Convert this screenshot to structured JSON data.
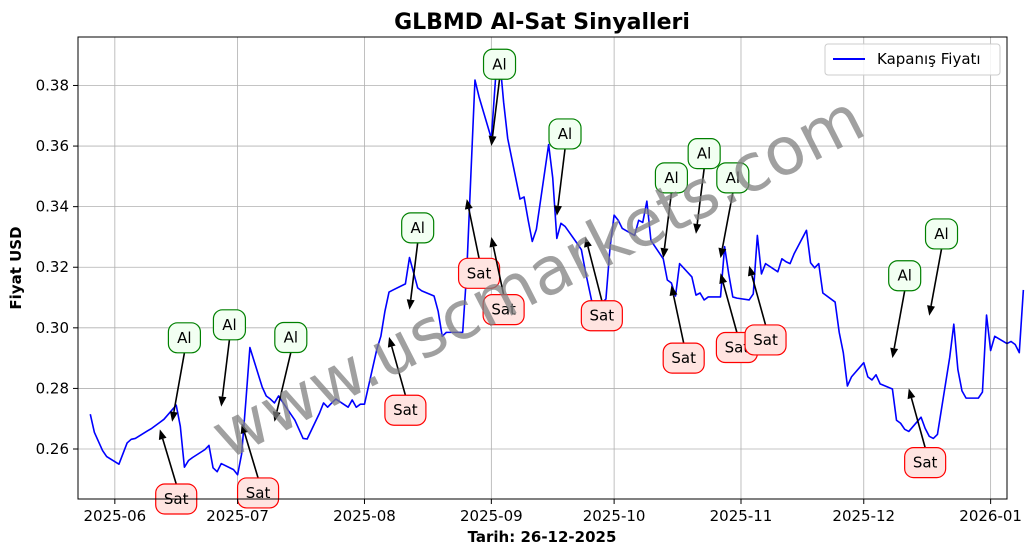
{
  "watermark": "www.uscmarkets.com",
  "chart_data": {
    "type": "line",
    "title": "GLBMD Al-Sat Sinyalleri",
    "xlabel": "Tarih: 26-12-2025",
    "ylabel": "Fiyat USD",
    "ylim": [
      0.2435,
      0.396
    ],
    "xlim": [
      "2025-05-23",
      "2026-01-05"
    ],
    "grid": true,
    "legend_position": "top-right",
    "x_ticks": [
      "2025-06-01",
      "2025-07-01",
      "2025-08-01",
      "2025-09-01",
      "2025-10-01",
      "2025-11-01",
      "2025-12-01",
      "2026-01-01"
    ],
    "x_tick_labels": [
      "2025-06",
      "2025-07",
      "2025-08",
      "2025-09",
      "2025-10",
      "2025-11",
      "2025-12",
      "2026-01"
    ],
    "y_ticks": [
      0.26,
      0.28,
      0.3,
      0.32,
      0.34,
      0.36,
      0.38
    ],
    "y_tick_labels": [
      "0.26",
      "0.28",
      "0.30",
      "0.32",
      "0.34",
      "0.36",
      "0.38"
    ],
    "series": [
      {
        "name": "Kapanış Fiyatı",
        "color": "#0000ff",
        "points": [
          [
            "2025-05-26",
            0.2715
          ],
          [
            "2025-05-27",
            0.2655
          ],
          [
            "2025-05-28",
            0.2625
          ],
          [
            "2025-05-29",
            0.2595
          ],
          [
            "2025-05-30",
            0.2575
          ],
          [
            "2025-06-02",
            0.255
          ],
          [
            "2025-06-03",
            0.2585
          ],
          [
            "2025-06-04",
            0.262
          ],
          [
            "2025-06-05",
            0.2632
          ],
          [
            "2025-06-06",
            0.2635
          ],
          [
            "2025-06-09",
            0.266
          ],
          [
            "2025-06-10",
            0.2668
          ],
          [
            "2025-06-11",
            0.2678
          ],
          [
            "2025-06-12",
            0.2688
          ],
          [
            "2025-06-13",
            0.2698
          ],
          [
            "2025-06-16",
            0.2745
          ],
          [
            "2025-06-17",
            0.2675
          ],
          [
            "2025-06-18",
            0.254
          ],
          [
            "2025-06-19",
            0.2562
          ],
          [
            "2025-06-20",
            0.2572
          ],
          [
            "2025-06-23",
            0.2598
          ],
          [
            "2025-06-24",
            0.2612
          ],
          [
            "2025-06-25",
            0.2538
          ],
          [
            "2025-06-26",
            0.2525
          ],
          [
            "2025-06-27",
            0.2552
          ],
          [
            "2025-06-30",
            0.2532
          ],
          [
            "2025-07-01",
            0.2515
          ],
          [
            "2025-07-02",
            0.2585
          ],
          [
            "2025-07-03",
            0.2755
          ],
          [
            "2025-07-04",
            0.2935
          ],
          [
            "2025-07-07",
            0.2805
          ],
          [
            "2025-07-08",
            0.2775
          ],
          [
            "2025-07-09",
            0.2765
          ],
          [
            "2025-07-10",
            0.2752
          ],
          [
            "2025-07-11",
            0.2775
          ],
          [
            "2025-07-14",
            0.2715
          ],
          [
            "2025-07-15",
            0.2695
          ],
          [
            "2025-07-16",
            0.2665
          ],
          [
            "2025-07-17",
            0.2635
          ],
          [
            "2025-07-18",
            0.2633
          ],
          [
            "2025-07-21",
            0.2718
          ],
          [
            "2025-07-22",
            0.2752
          ],
          [
            "2025-07-23",
            0.2738
          ],
          [
            "2025-07-24",
            0.2752
          ],
          [
            "2025-07-25",
            0.2765
          ],
          [
            "2025-07-28",
            0.2738
          ],
          [
            "2025-07-29",
            0.2762
          ],
          [
            "2025-07-30",
            0.2738
          ],
          [
            "2025-07-31",
            0.2748
          ],
          [
            "2025-08-01",
            0.2748
          ],
          [
            "2025-08-04",
            0.2928
          ],
          [
            "2025-08-05",
            0.2972
          ],
          [
            "2025-08-06",
            0.3055
          ],
          [
            "2025-08-07",
            0.3118
          ],
          [
            "2025-08-08",
            0.3125
          ],
          [
            "2025-08-11",
            0.3145
          ],
          [
            "2025-08-12",
            0.3232
          ],
          [
            "2025-08-13",
            0.3182
          ],
          [
            "2025-08-14",
            0.3132
          ],
          [
            "2025-08-15",
            0.3122
          ],
          [
            "2025-08-18",
            0.3105
          ],
          [
            "2025-08-19",
            0.3055
          ],
          [
            "2025-08-20",
            0.2972
          ],
          [
            "2025-08-21",
            0.2985
          ],
          [
            "2025-08-22",
            0.2985
          ],
          [
            "2025-08-25",
            0.2985
          ],
          [
            "2025-08-26",
            0.3188
          ],
          [
            "2025-08-27",
            0.3505
          ],
          [
            "2025-08-28",
            0.3818
          ],
          [
            "2025-08-29",
            0.3762
          ],
          [
            "2025-09-01",
            0.3625
          ],
          [
            "2025-09-02",
            0.3818
          ],
          [
            "2025-09-03",
            0.3895
          ],
          [
            "2025-09-04",
            0.3745
          ],
          [
            "2025-09-05",
            0.3625
          ],
          [
            "2025-09-08",
            0.3425
          ],
          [
            "2025-09-09",
            0.3432
          ],
          [
            "2025-09-10",
            0.3355
          ],
          [
            "2025-09-11",
            0.3285
          ],
          [
            "2025-09-12",
            0.3325
          ],
          [
            "2025-09-15",
            0.3605
          ],
          [
            "2025-09-16",
            0.3495
          ],
          [
            "2025-09-17",
            0.3295
          ],
          [
            "2025-09-18",
            0.3345
          ],
          [
            "2025-09-19",
            0.3335
          ],
          [
            "2025-09-22",
            0.3278
          ],
          [
            "2025-09-23",
            0.3258
          ],
          [
            "2025-09-24",
            0.3185
          ],
          [
            "2025-09-25",
            0.3122
          ],
          [
            "2025-09-26",
            0.3058
          ],
          [
            "2025-09-29",
            0.3095
          ],
          [
            "2025-09-30",
            0.3265
          ],
          [
            "2025-10-01",
            0.3372
          ],
          [
            "2025-10-02",
            0.3355
          ],
          [
            "2025-10-03",
            0.3328
          ],
          [
            "2025-10-06",
            0.3305
          ],
          [
            "2025-10-07",
            0.3355
          ],
          [
            "2025-10-08",
            0.3348
          ],
          [
            "2025-10-09",
            0.3418
          ],
          [
            "2025-10-10",
            0.3288
          ],
          [
            "2025-10-13",
            0.3228
          ],
          [
            "2025-10-14",
            0.3158
          ],
          [
            "2025-10-15",
            0.3148
          ],
          [
            "2025-10-16",
            0.3105
          ],
          [
            "2025-10-17",
            0.3212
          ],
          [
            "2025-10-20",
            0.3168
          ],
          [
            "2025-10-21",
            0.3108
          ],
          [
            "2025-10-22",
            0.3115
          ],
          [
            "2025-10-23",
            0.3092
          ],
          [
            "2025-10-24",
            0.3102
          ],
          [
            "2025-10-27",
            0.3102
          ],
          [
            "2025-10-28",
            0.3268
          ],
          [
            "2025-10-29",
            0.3178
          ],
          [
            "2025-10-30",
            0.3102
          ],
          [
            "2025-10-31",
            0.3098
          ],
          [
            "2025-11-03",
            0.3092
          ],
          [
            "2025-11-04",
            0.3112
          ],
          [
            "2025-11-05",
            0.3305
          ],
          [
            "2025-11-06",
            0.3178
          ],
          [
            "2025-11-07",
            0.3212
          ],
          [
            "2025-11-10",
            0.3185
          ],
          [
            "2025-11-11",
            0.3228
          ],
          [
            "2025-11-12",
            0.3218
          ],
          [
            "2025-11-13",
            0.3212
          ],
          [
            "2025-11-14",
            0.3245
          ],
          [
            "2025-11-17",
            0.3322
          ],
          [
            "2025-11-18",
            0.3215
          ],
          [
            "2025-11-19",
            0.3198
          ],
          [
            "2025-11-20",
            0.3212
          ],
          [
            "2025-11-21",
            0.3115
          ],
          [
            "2025-11-24",
            0.3085
          ],
          [
            "2025-11-25",
            0.2985
          ],
          [
            "2025-11-26",
            0.2918
          ],
          [
            "2025-11-27",
            0.2808
          ],
          [
            "2025-11-28",
            0.2838
          ],
          [
            "2025-12-01",
            0.2885
          ],
          [
            "2025-12-02",
            0.2838
          ],
          [
            "2025-12-03",
            0.2828
          ],
          [
            "2025-12-04",
            0.2845
          ],
          [
            "2025-12-05",
            0.2815
          ],
          [
            "2025-12-08",
            0.2798
          ],
          [
            "2025-12-09",
            0.2695
          ],
          [
            "2025-12-10",
            0.2685
          ],
          [
            "2025-12-11",
            0.2665
          ],
          [
            "2025-12-12",
            0.2658
          ],
          [
            "2025-12-15",
            0.2705
          ],
          [
            "2025-12-16",
            0.2668
          ],
          [
            "2025-12-17",
            0.2642
          ],
          [
            "2025-12-18",
            0.2635
          ],
          [
            "2025-12-19",
            0.2648
          ],
          [
            "2025-12-22",
            0.2902
          ],
          [
            "2025-12-23",
            0.3012
          ],
          [
            "2025-12-24",
            0.2862
          ],
          [
            "2025-12-25",
            0.2792
          ],
          [
            "2025-12-26",
            0.2768
          ],
          [
            "2025-12-29",
            0.2768
          ],
          [
            "2025-12-30",
            0.2788
          ],
          [
            "2025-12-31",
            0.3042
          ],
          [
            "2026-01-01",
            0.2925
          ],
          [
            "2026-01-02",
            0.2972
          ],
          [
            "2026-01-05",
            0.2948
          ],
          [
            "2026-01-06",
            0.2955
          ],
          [
            "2026-01-07",
            0.2945
          ],
          [
            "2026-01-08",
            0.2918
          ],
          [
            "2026-01-09",
            0.3125
          ]
        ]
      }
    ],
    "signals": [
      {
        "label": "Al",
        "type": "buy",
        "x": "2025-06-15",
        "y": 0.269,
        "text_x": "2025-06-18",
        "text_y": 0.2967
      },
      {
        "label": "Al",
        "type": "buy",
        "x": "2025-06-27",
        "y": 0.274,
        "text_x": "2025-06-29",
        "text_y": 0.301
      },
      {
        "label": "Al",
        "type": "buy",
        "x": "2025-07-10",
        "y": 0.269,
        "text_x": "2025-07-14",
        "text_y": 0.2968
      },
      {
        "label": "Al",
        "type": "buy",
        "x": "2025-08-12",
        "y": 0.306,
        "text_x": "2025-08-14",
        "text_y": 0.333
      },
      {
        "label": "Al",
        "type": "buy",
        "x": "2025-09-01",
        "y": 0.36,
        "text_x": "2025-09-03",
        "text_y": 0.387
      },
      {
        "label": "Al",
        "type": "buy",
        "x": "2025-09-17",
        "y": 0.337,
        "text_x": "2025-09-19",
        "text_y": 0.364
      },
      {
        "label": "Al",
        "type": "buy",
        "x": "2025-10-13",
        "y": 0.323,
        "text_x": "2025-10-15",
        "text_y": 0.3495
      },
      {
        "label": "Al",
        "type": "buy",
        "x": "2025-10-21",
        "y": 0.331,
        "text_x": "2025-10-23",
        "text_y": 0.3575
      },
      {
        "label": "Al",
        "type": "buy",
        "x": "2025-10-27",
        "y": 0.323,
        "text_x": "2025-10-30",
        "text_y": 0.3495
      },
      {
        "label": "Al",
        "type": "buy",
        "x": "2025-12-08",
        "y": 0.29,
        "text_x": "2025-12-11",
        "text_y": 0.3172
      },
      {
        "label": "Al",
        "type": "buy",
        "x": "2025-12-17",
        "y": 0.304,
        "text_x": "2025-12-20",
        "text_y": 0.331
      },
      {
        "label": "Sat",
        "type": "sell",
        "x": "2025-06-12",
        "y": 0.2665,
        "text_x": "2025-06-16",
        "text_y": 0.2435
      },
      {
        "label": "Sat",
        "type": "sell",
        "x": "2025-07-02",
        "y": 0.2685,
        "text_x": "2025-07-06",
        "text_y": 0.2455
      },
      {
        "label": "Sat",
        "type": "sell",
        "x": "2025-08-07",
        "y": 0.297,
        "text_x": "2025-08-11",
        "text_y": 0.2728
      },
      {
        "label": "Sat",
        "type": "sell",
        "x": "2025-08-26",
        "y": 0.3425,
        "text_x": "2025-08-29",
        "text_y": 0.318
      },
      {
        "label": "Sat",
        "type": "sell",
        "x": "2025-09-01",
        "y": 0.33,
        "text_x": "2025-09-04",
        "text_y": 0.306
      },
      {
        "label": "Sat",
        "type": "sell",
        "x": "2025-09-24",
        "y": 0.33,
        "text_x": "2025-09-28",
        "text_y": 0.304
      },
      {
        "label": "Sat",
        "type": "sell",
        "x": "2025-10-15",
        "y": 0.314,
        "text_x": "2025-10-18",
        "text_y": 0.29
      },
      {
        "label": "Sat",
        "type": "sell",
        "x": "2025-10-27",
        "y": 0.318,
        "text_x": "2025-10-31",
        "text_y": 0.2935
      },
      {
        "label": "Sat",
        "type": "sell",
        "x": "2025-11-03",
        "y": 0.3205,
        "text_x": "2025-11-07",
        "text_y": 0.296
      },
      {
        "label": "Sat",
        "type": "sell",
        "x": "2025-12-12",
        "y": 0.28,
        "text_x": "2025-12-16",
        "text_y": 0.2555
      }
    ]
  }
}
